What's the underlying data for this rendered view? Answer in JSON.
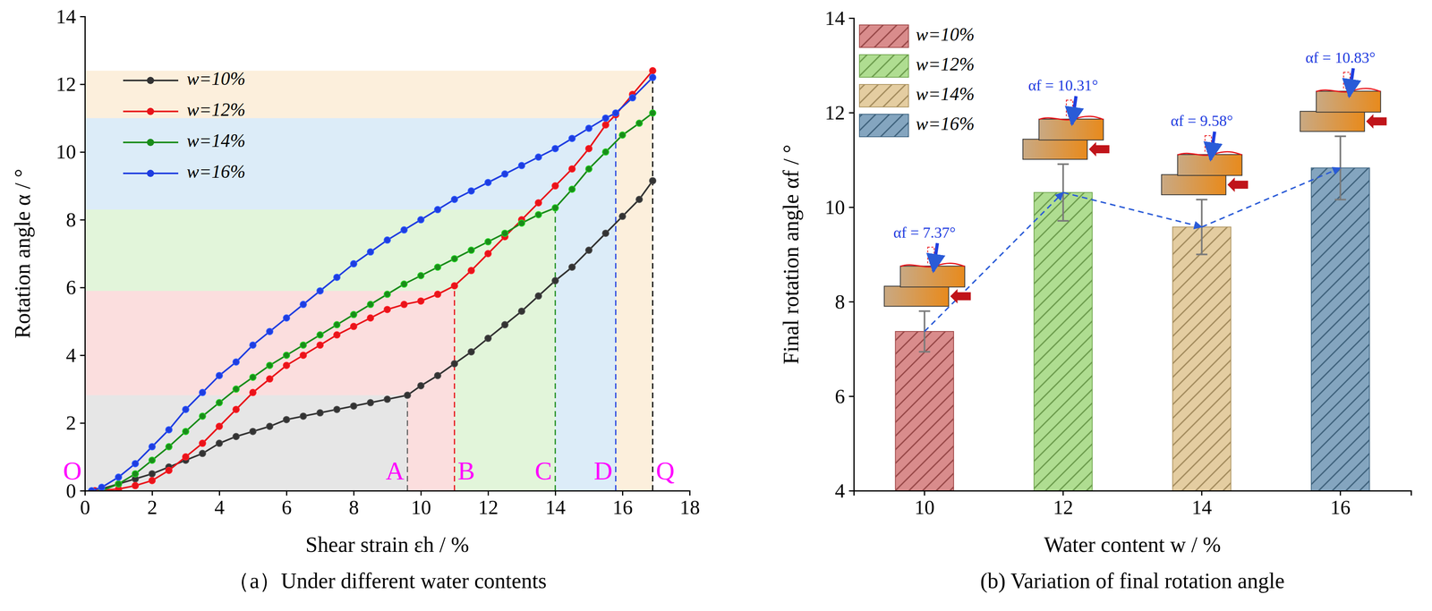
{
  "chart_data": [
    {
      "type": "line",
      "caption": "（a）Under different water contents",
      "x_label": "Shear strain εh / %",
      "y_label": "Rotation angle α / °",
      "xlim": [
        0,
        18
      ],
      "xticks": [
        0,
        2,
        4,
        6,
        8,
        10,
        12,
        14,
        16,
        18
      ],
      "ylim": [
        0,
        14
      ],
      "yticks": [
        0,
        2,
        4,
        6,
        8,
        10,
        12,
        14
      ],
      "marker": "circle",
      "line_style": "solid",
      "legend": "upper left",
      "series": [
        {
          "name": "w=10%",
          "color": "#333333",
          "x": [
            0.3,
            1,
            1.5,
            2,
            2.5,
            3,
            3.5,
            4,
            4.5,
            5,
            5.5,
            6,
            6.5,
            7,
            7.5,
            8,
            8.5,
            9,
            9.6,
            10,
            10.5,
            11,
            11.5,
            12,
            12.5,
            13,
            13.5,
            14,
            14.5,
            15,
            15.5,
            16,
            16.5,
            16.9
          ],
          "values": [
            0,
            0.2,
            0.35,
            0.5,
            0.7,
            0.9,
            1.1,
            1.4,
            1.6,
            1.75,
            1.9,
            2.1,
            2.2,
            2.3,
            2.4,
            2.5,
            2.6,
            2.7,
            2.82,
            3.1,
            3.4,
            3.75,
            4.1,
            4.5,
            4.9,
            5.3,
            5.75,
            6.2,
            6.6,
            7.1,
            7.6,
            8.1,
            8.6,
            9.15
          ]
        },
        {
          "name": "w=12%",
          "color": "#e8141a",
          "x": [
            0.3,
            1,
            1.5,
            2,
            2.5,
            3,
            3.5,
            4,
            4.5,
            5,
            5.5,
            6,
            6.5,
            7,
            7.5,
            8,
            8.5,
            9,
            9.5,
            10,
            10.5,
            11,
            11.5,
            12,
            12.5,
            13,
            13.5,
            14,
            14.5,
            15,
            15.5,
            15.8,
            16.3,
            16.9
          ],
          "values": [
            0,
            0.05,
            0.15,
            0.3,
            0.6,
            1.0,
            1.4,
            1.9,
            2.4,
            2.9,
            3.3,
            3.7,
            4.0,
            4.3,
            4.6,
            4.85,
            5.1,
            5.35,
            5.5,
            5.6,
            5.8,
            6.05,
            6.5,
            7.0,
            7.5,
            8.0,
            8.5,
            9.0,
            9.5,
            10.1,
            10.8,
            11.1,
            11.7,
            12.4
          ]
        },
        {
          "name": "w=14%",
          "color": "#1a8c1a",
          "x": [
            0.5,
            1,
            1.5,
            2,
            2.5,
            3,
            3.5,
            4,
            4.5,
            5,
            5.5,
            6,
            6.5,
            7,
            7.5,
            8,
            8.5,
            9,
            9.5,
            10,
            10.5,
            11,
            11.5,
            12,
            12.5,
            13,
            13.5,
            14,
            14.5,
            15,
            15.5,
            16,
            16.5,
            16.9
          ],
          "values": [
            0,
            0.2,
            0.5,
            0.9,
            1.3,
            1.75,
            2.2,
            2.6,
            3.0,
            3.35,
            3.7,
            4.0,
            4.3,
            4.6,
            4.9,
            5.2,
            5.5,
            5.8,
            6.1,
            6.35,
            6.6,
            6.85,
            7.1,
            7.35,
            7.6,
            7.9,
            8.15,
            8.35,
            8.9,
            9.5,
            10.0,
            10.5,
            10.85,
            11.15
          ]
        },
        {
          "name": "w=16%",
          "color": "#1f3de0",
          "x": [
            0.2,
            0.5,
            1,
            1.5,
            2,
            2.5,
            3,
            3.5,
            4,
            4.5,
            5,
            5.5,
            6,
            6.5,
            7,
            7.5,
            8,
            8.5,
            9,
            9.5,
            10,
            10.5,
            11,
            11.5,
            12,
            12.5,
            13,
            13.5,
            14,
            14.5,
            15,
            15.5,
            15.8,
            16.3,
            16.9
          ],
          "values": [
            0,
            0.1,
            0.4,
            0.8,
            1.3,
            1.8,
            2.4,
            2.9,
            3.4,
            3.8,
            4.3,
            4.7,
            5.1,
            5.5,
            5.9,
            6.3,
            6.7,
            7.05,
            7.4,
            7.7,
            8.0,
            8.3,
            8.6,
            8.85,
            9.1,
            9.35,
            9.6,
            9.85,
            10.1,
            10.4,
            10.7,
            11.0,
            11.15,
            11.6,
            12.2
          ]
        }
      ],
      "points": [
        {
          "label": "O",
          "x": 0
        },
        {
          "label": "A",
          "x": 9.6,
          "y": 2.82,
          "color": "#e6e6e6"
        },
        {
          "label": "B",
          "x": 11.0,
          "y": 5.9,
          "color": "#fbdede"
        },
        {
          "label": "C",
          "x": 14.0,
          "y": 8.3,
          "color": "#e2f5da"
        },
        {
          "label": "D",
          "x": 15.8,
          "y": 11.0,
          "color": "#dcecf8"
        },
        {
          "label": "Q",
          "x": 16.9,
          "y": 12.4,
          "color": "#fcefdc"
        }
      ]
    },
    {
      "type": "bar",
      "caption": "(b) Variation of final rotation angle",
      "x_label": "Water content w / %",
      "y_label": "Final rotation angle αf / °",
      "categories": [
        "10",
        "12",
        "14",
        "16"
      ],
      "values": [
        7.37,
        10.31,
        9.58,
        10.83
      ],
      "errors": [
        0.43,
        0.6,
        0.58,
        0.67
      ],
      "colors": [
        "#c85a5a",
        "#8ccf62",
        "#d8b878",
        "#4f7fa3"
      ],
      "data_labels": true,
      "value_labels": [
        "αf = 7.37°",
        "αf = 10.31°",
        "αf = 9.58°",
        "αf = 10.83°"
      ],
      "legend": "upper left",
      "legend_labels": [
        "w=10%",
        "w=12%",
        "w=14%",
        "w=16%"
      ],
      "ylim": [
        4,
        14
      ],
      "yticks": [
        4,
        6,
        8,
        10,
        12,
        14
      ]
    }
  ]
}
